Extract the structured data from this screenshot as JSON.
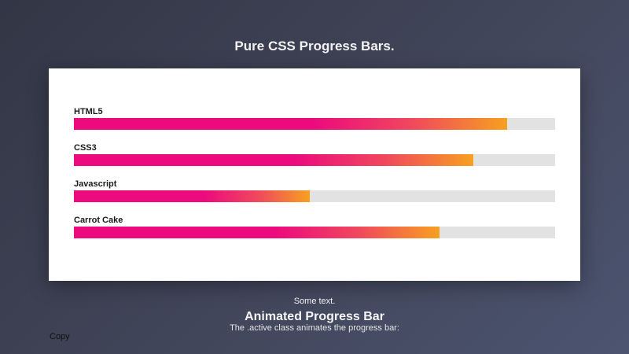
{
  "header": {
    "title": "Pure CSS Progress Bars."
  },
  "skills": [
    {
      "label": "HTML5",
      "percent": 90
    },
    {
      "label": "CSS3",
      "percent": 83
    },
    {
      "label": "Javascript",
      "percent": 49
    },
    {
      "label": "Carrot Cake",
      "percent": 76
    }
  ],
  "colors": {
    "fill_start": "#ec0a7e",
    "fill_mid": "#f0485d",
    "fill_end": "#f7a021",
    "track": "#e2e2e2",
    "card": "#ffffff"
  },
  "footer": {
    "some_text": "Some text.",
    "heading": "Animated Progress Bar",
    "description": "The .active class animates the progress bar:",
    "copy_label": "Copy"
  }
}
